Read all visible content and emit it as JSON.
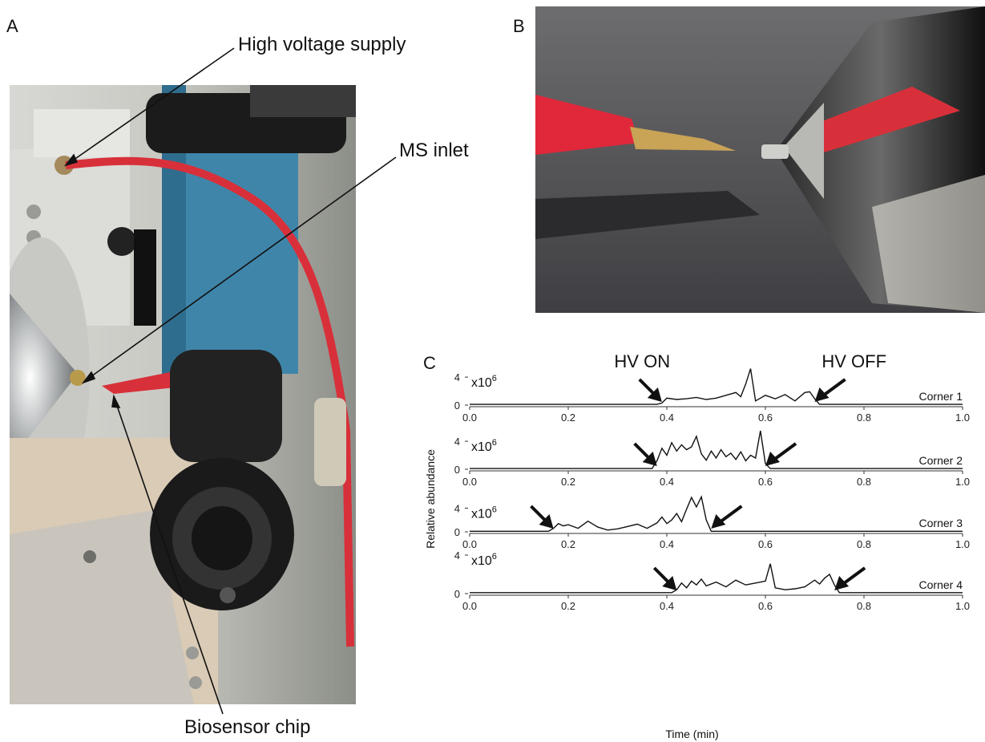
{
  "panels": {
    "a": {
      "label": "A",
      "callouts": {
        "high_voltage": "High voltage supply",
        "ms_inlet": "MS inlet",
        "biosensor": "Biosensor chip"
      }
    },
    "b": {
      "label": "B"
    },
    "c": {
      "label": "C",
      "annotations": {
        "hv_on": "HV ON",
        "hv_off": "HV OFF"
      },
      "multiplier": "x10",
      "exponent": "6"
    }
  },
  "chart_data": {
    "type": "line",
    "xlabel": "Time (min)",
    "ylabel": "Relative abundance",
    "xlim": [
      0.0,
      1.0
    ],
    "x_ticks": [
      "0.0",
      "0.2",
      "0.4",
      "0.6",
      "0.8",
      "1.0"
    ],
    "series": [
      {
        "name": "Corner 1",
        "y_ticks": [
          "4",
          "0"
        ],
        "ylim": [
          0,
          5.5
        ],
        "hv_on": 0.39,
        "hv_off": 0.7,
        "x": [
          0.0,
          0.38,
          0.39,
          0.4,
          0.42,
          0.44,
          0.46,
          0.48,
          0.5,
          0.52,
          0.54,
          0.55,
          0.56,
          0.57,
          0.58,
          0.6,
          0.62,
          0.64,
          0.66,
          0.68,
          0.69,
          0.7,
          0.71,
          1.0
        ],
        "values": [
          0.1,
          0.1,
          0.3,
          1.0,
          0.8,
          0.9,
          1.1,
          0.8,
          1.0,
          1.4,
          1.8,
          1.2,
          3.0,
          5.2,
          0.6,
          1.4,
          0.9,
          1.5,
          0.6,
          1.8,
          1.9,
          0.9,
          0.1,
          0.1
        ]
      },
      {
        "name": "Corner 2",
        "y_ticks": [
          "4",
          "0"
        ],
        "ylim": [
          0,
          5.5
        ],
        "hv_on": 0.38,
        "hv_off": 0.6,
        "x": [
          0.0,
          0.37,
          0.38,
          0.39,
          0.4,
          0.41,
          0.42,
          0.43,
          0.44,
          0.45,
          0.46,
          0.47,
          0.48,
          0.49,
          0.5,
          0.51,
          0.52,
          0.53,
          0.54,
          0.55,
          0.56,
          0.57,
          0.58,
          0.59,
          0.6,
          0.61,
          1.0
        ],
        "values": [
          0.1,
          0.1,
          1.2,
          3.0,
          2.0,
          3.8,
          2.6,
          3.5,
          2.8,
          3.2,
          4.7,
          2.2,
          1.3,
          2.6,
          1.6,
          2.8,
          1.8,
          2.3,
          1.4,
          2.5,
          1.2,
          2.0,
          1.6,
          5.5,
          0.8,
          0.1,
          0.1
        ]
      },
      {
        "name": "Corner 3",
        "y_ticks": [
          "4",
          "0"
        ],
        "ylim": [
          0,
          6.5
        ],
        "hv_on": 0.17,
        "hv_off": 0.49,
        "x": [
          0.0,
          0.16,
          0.17,
          0.18,
          0.19,
          0.2,
          0.22,
          0.24,
          0.26,
          0.28,
          0.3,
          0.32,
          0.34,
          0.36,
          0.38,
          0.39,
          0.4,
          0.41,
          0.42,
          0.43,
          0.44,
          0.45,
          0.46,
          0.47,
          0.48,
          0.49,
          1.0
        ],
        "values": [
          0.1,
          0.1,
          0.6,
          1.4,
          1.0,
          1.2,
          0.6,
          1.8,
          0.8,
          0.3,
          0.5,
          0.9,
          1.3,
          0.6,
          1.5,
          2.5,
          1.4,
          2.0,
          3.1,
          1.7,
          3.8,
          5.8,
          4.2,
          5.9,
          2.0,
          0.1,
          0.1
        ]
      },
      {
        "name": "Corner 4",
        "y_ticks": [
          "4",
          "0"
        ],
        "ylim": [
          0,
          4.0
        ],
        "hv_on": 0.42,
        "hv_off": 0.74,
        "x": [
          0.0,
          0.41,
          0.42,
          0.43,
          0.44,
          0.45,
          0.46,
          0.47,
          0.48,
          0.5,
          0.52,
          0.54,
          0.56,
          0.58,
          0.6,
          0.61,
          0.62,
          0.64,
          0.66,
          0.68,
          0.7,
          0.71,
          0.72,
          0.73,
          0.74,
          0.75,
          1.0
        ],
        "values": [
          0.1,
          0.1,
          0.4,
          1.1,
          0.6,
          1.3,
          0.9,
          1.5,
          0.8,
          1.2,
          0.7,
          1.4,
          0.9,
          1.1,
          1.3,
          3.1,
          0.6,
          0.4,
          0.5,
          0.7,
          1.4,
          1.0,
          1.6,
          2.0,
          0.9,
          0.1,
          0.1
        ]
      }
    ]
  }
}
